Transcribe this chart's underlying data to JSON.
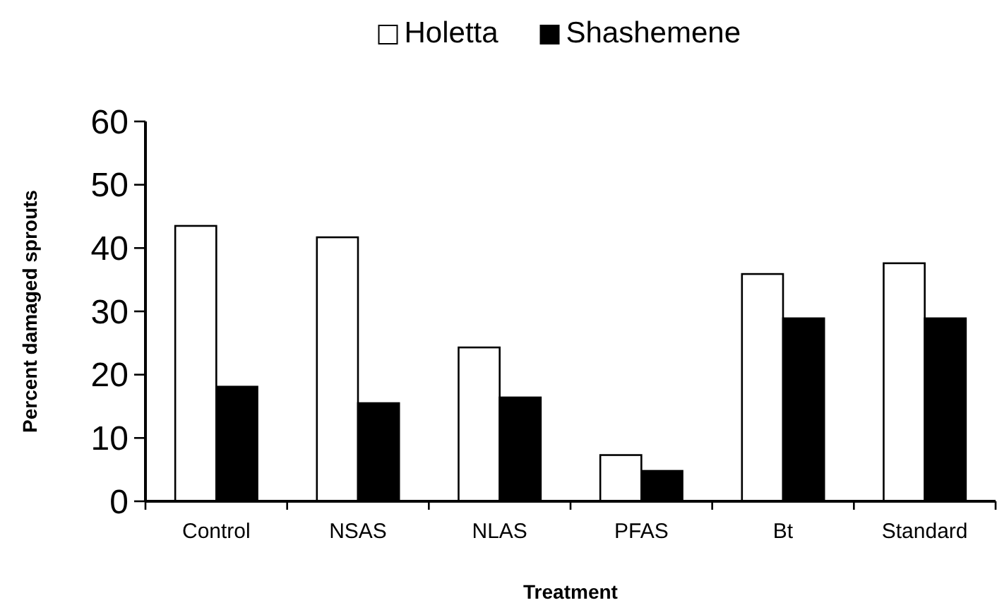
{
  "chart_data": {
    "type": "bar",
    "xlabel": "Treatment",
    "ylabel": "Percent damaged sprouts",
    "categories": [
      "Control",
      "NSAS",
      "NLAS",
      "PFAS",
      "Bt",
      "Standard"
    ],
    "series": [
      {
        "name": "Holetta",
        "color": "#ffffff",
        "values": [
          43.5,
          41.7,
          24.3,
          7.3,
          35.9,
          37.6
        ]
      },
      {
        "name": "Shashemene",
        "color": "#000000",
        "values": [
          18.1,
          15.5,
          16.4,
          4.8,
          28.9,
          28.9
        ]
      }
    ],
    "ylim": [
      0,
      60
    ],
    "yticks": [
      0,
      10,
      20,
      30,
      40,
      50,
      60
    ],
    "grid": false,
    "legend": "top"
  }
}
